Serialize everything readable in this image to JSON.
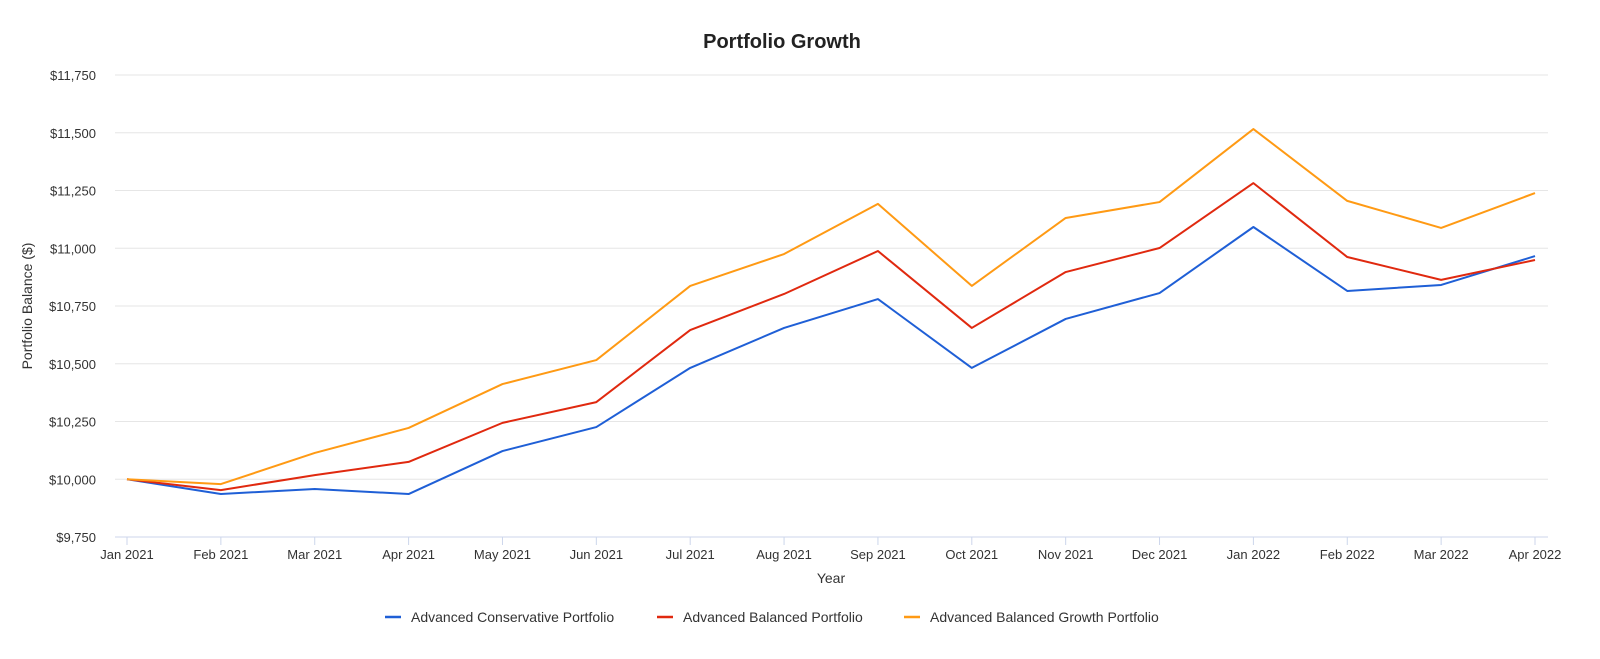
{
  "chart_data": {
    "type": "line",
    "title": "Portfolio Growth",
    "xlabel": "Year",
    "ylabel": "Portfolio Balance ($)",
    "ylim": [
      9750,
      11750
    ],
    "yticks": [
      "$9,750",
      "$10,000",
      "$10,250",
      "$10,500",
      "$10,750",
      "$11,000",
      "$11,250",
      "$11,500",
      "$11,750"
    ],
    "ytick_values": [
      9750,
      10000,
      10250,
      10500,
      10750,
      11000,
      11250,
      11500,
      11750
    ],
    "categories": [
      "Jan 2021",
      "Feb 2021",
      "Mar 2021",
      "Apr 2021",
      "May 2021",
      "Jun 2021",
      "Jul 2021",
      "Aug 2021",
      "Sep 2021",
      "Oct 2021",
      "Nov 2021",
      "Dec 2021",
      "Jan 2022",
      "Feb 2022",
      "Mar 2022",
      "Apr 2022"
    ],
    "grid": true,
    "legend_position": "bottom",
    "series": [
      {
        "name": "Advanced Conservative Portfolio",
        "color": "#1f5fd6",
        "values": [
          10000,
          9936,
          9958,
          9936,
          10122,
          10226,
          10482,
          10655,
          10780,
          10482,
          10694,
          10806,
          11092,
          10815,
          10841,
          10966
        ]
      },
      {
        "name": "Advanced Balanced Portfolio",
        "color": "#e0290f",
        "values": [
          10000,
          9953,
          10018,
          10075,
          10244,
          10334,
          10646,
          10802,
          10988,
          10655,
          10897,
          11001,
          11282,
          10962,
          10863,
          10949
        ]
      },
      {
        "name": "Advanced Balanced Growth Portfolio",
        "color": "#ff9a14",
        "values": [
          10000,
          9979,
          10114,
          10222,
          10412,
          10516,
          10837,
          10975,
          11192,
          10837,
          11131,
          11200,
          11516,
          11205,
          11088,
          11239
        ]
      }
    ]
  }
}
